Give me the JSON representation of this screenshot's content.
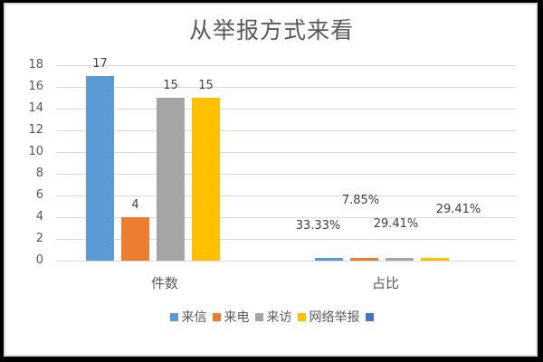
{
  "chart_data": {
    "type": "bar",
    "title": "从举报方式来看",
    "categories": [
      "件数",
      "占比"
    ],
    "series": [
      {
        "name": "来信",
        "color": "#5b9bd5",
        "values": [
          17,
          0.3333
        ],
        "labels": [
          "17",
          "33.33%"
        ]
      },
      {
        "name": "来电",
        "color": "#ed7d31",
        "values": [
          4,
          0.0785
        ],
        "labels": [
          "4",
          "7.85%"
        ]
      },
      {
        "name": "来访",
        "color": "#a5a5a5",
        "values": [
          15,
          0.2941
        ],
        "labels": [
          "15",
          "29.41%"
        ]
      },
      {
        "name": "网络举报",
        "color": "#ffc000",
        "values": [
          15,
          0.2941
        ],
        "labels": [
          "15",
          "29.41%"
        ]
      },
      {
        "name": "",
        "color": "#4472c4",
        "values": [],
        "labels": []
      }
    ],
    "xlabel": "",
    "ylabel": "",
    "ylim": [
      0,
      18
    ],
    "yticks": [
      "0",
      "2",
      "4",
      "6",
      "8",
      "10",
      "12",
      "14",
      "16",
      "18"
    ],
    "grid": true,
    "legend_position": "bottom"
  }
}
